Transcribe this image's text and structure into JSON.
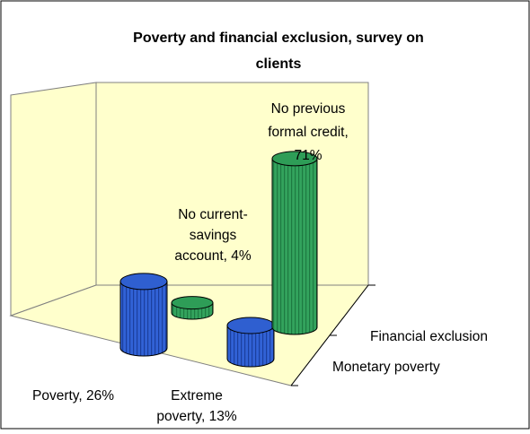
{
  "chart_data": {
    "type": "bar",
    "subtype": "3d-cylinder",
    "title_lines": [
      "Poverty and financial exclusion, survey on",
      "clients"
    ],
    "depth_categories": [
      "Monetary poverty",
      "Financial exclusion"
    ],
    "bars": [
      {
        "name": "Poverty",
        "value": 26,
        "label_lines": [
          "Poverty, 26%"
        ],
        "depth": "Monetary poverty",
        "color": "#3060d0"
      },
      {
        "name": "No current-savings account",
        "value": 4,
        "label_lines": [
          "No current-",
          "savings",
          "account,  4%"
        ],
        "depth": "Financial exclusion",
        "color": "#2ea05a"
      },
      {
        "name": "Extreme poverty",
        "value": 13,
        "label_lines": [
          "Extreme",
          "poverty, 13%"
        ],
        "depth": "Monetary poverty",
        "color": "#3060d0"
      },
      {
        "name": "No previous formal credit",
        "value": 71,
        "label_lines": [
          "No previous",
          "formal credit,",
          "71%"
        ],
        "depth": "Financial exclusion",
        "color": "#2ea05a"
      }
    ],
    "unit": "%",
    "ylim": [
      0,
      100
    ],
    "grid": false,
    "legend": "none",
    "wall_color": "#ffffcc"
  }
}
